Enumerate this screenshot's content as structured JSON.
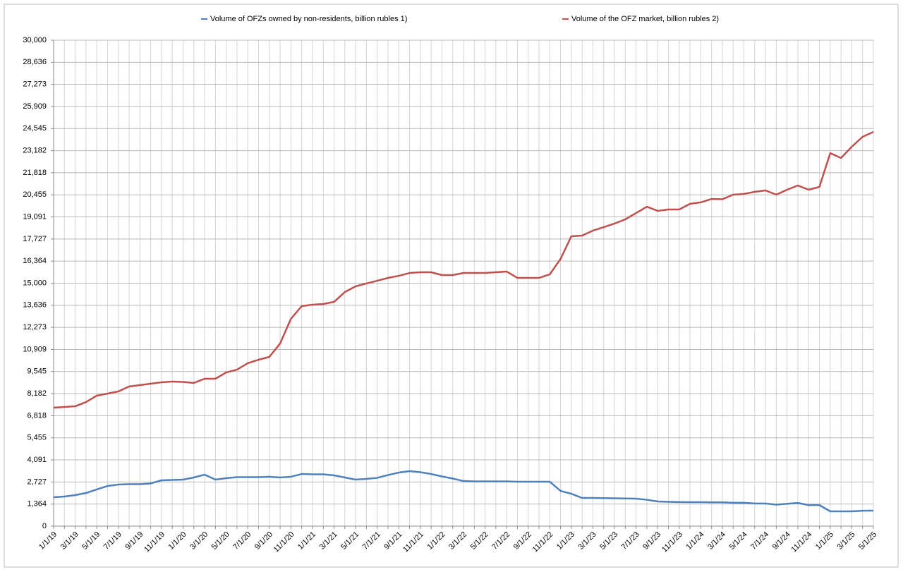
{
  "chart_data": {
    "type": "line",
    "categories": [
      "1/1/19",
      null,
      "3/1/19",
      null,
      "5/1/19",
      null,
      "7/1/19",
      null,
      "9/1/19",
      null,
      "11/1/19",
      null,
      "1/1/20",
      null,
      "3/1/20",
      null,
      "5/1/20",
      null,
      "7/1/20",
      null,
      "9/1/20",
      null,
      "11/1/20",
      null,
      "1/1/21",
      null,
      "3/1/21",
      null,
      "5/1/21",
      null,
      "7/1/21",
      null,
      "9/1/21",
      null,
      "11/1/21",
      null,
      "1/1/22",
      null,
      "3/1/22",
      null,
      "5/1/22",
      null,
      "7/1/22",
      null,
      "9/1/22",
      null,
      "11/1/22",
      null,
      "1/1/23",
      null,
      "3/1/23",
      null,
      "5/1/23",
      null,
      "7/1/23",
      null,
      "9/1/23",
      null,
      "11/1/23",
      null,
      "1/1/24",
      null,
      "3/1/24",
      null,
      "5/1/24",
      null,
      "7/1/24",
      null,
      "9/1/24",
      null,
      "11/1/24",
      null,
      "1/1/25",
      null,
      "3/1/25",
      null,
      "5/1/25"
    ],
    "series": [
      {
        "name": "Volume of OFZs owned by non-residents, billion rubles 1)",
        "color": "#4f81bd",
        "values": [
          1785,
          1830,
          1915,
          2045,
          2265,
          2480,
          2570,
          2590,
          2590,
          2635,
          2830,
          2850,
          2875,
          3005,
          3180,
          2875,
          2960,
          3025,
          3025,
          3025,
          3050,
          3005,
          3050,
          3220,
          3200,
          3200,
          3135,
          3005,
          2875,
          2915,
          2980,
          3155,
          3310,
          3395,
          3330,
          3220,
          3070,
          2940,
          2785,
          2765,
          2765,
          2765,
          2765,
          2745,
          2745,
          2745,
          2745,
          2175,
          2000,
          1740,
          1740,
          1730,
          1720,
          1710,
          1700,
          1630,
          1525,
          1500,
          1485,
          1480,
          1480,
          1470,
          1470,
          1445,
          1445,
          1400,
          1400,
          1330,
          1380,
          1430,
          1300,
          1300,
          915,
          915,
          915,
          955,
          960
        ]
      },
      {
        "name": "Volume of the OFZ market, billion rubles 2)",
        "color": "#c0504d",
        "values": [
          7315,
          7360,
          7400,
          7660,
          8055,
          8185,
          8315,
          8620,
          8710,
          8795,
          8880,
          8925,
          8905,
          8840,
          9100,
          9100,
          9490,
          9665,
          10060,
          10275,
          10450,
          11275,
          12800,
          13585,
          13670,
          13715,
          13845,
          14455,
          14805,
          14980,
          15150,
          15325,
          15455,
          15630,
          15675,
          15675,
          15500,
          15500,
          15630,
          15630,
          15630,
          15675,
          15720,
          15325,
          15325,
          15325,
          15545,
          16500,
          17895,
          17940,
          18245,
          18460,
          18680,
          18940,
          19330,
          19720,
          19465,
          19550,
          19550,
          19900,
          19990,
          20200,
          20180,
          20465,
          20510,
          20640,
          20725,
          20465,
          20770,
          21030,
          20770,
          20945,
          23030,
          22730,
          23425,
          24035,
          24340
        ]
      }
    ],
    "ylim": [
      0,
      30000
    ],
    "yticks": [
      0,
      {
        "value": 1364,
        "label": "1,364"
      },
      {
        "value": 2727,
        "label": "2,727"
      },
      {
        "value": 4091,
        "label": "4,091"
      },
      {
        "value": 5455,
        "label": "5,455"
      },
      {
        "value": 6818,
        "label": "6,818"
      },
      {
        "value": 8182,
        "label": "8,182"
      },
      {
        "value": 9545,
        "label": "9,545"
      },
      {
        "value": 10909,
        "label": "10,909"
      },
      {
        "value": 12273,
        "label": "12,273"
      },
      {
        "value": 13636,
        "label": "13,636"
      },
      {
        "value": 15000,
        "label": "15,000"
      },
      {
        "value": 16364,
        "label": "16,364"
      },
      {
        "value": 17727,
        "label": "17,727"
      },
      {
        "value": 19091,
        "label": "19,091"
      },
      {
        "value": 20455,
        "label": "20,455"
      },
      {
        "value": 21818,
        "label": "21,818"
      },
      {
        "value": 23182,
        "label": "23,182"
      },
      {
        "value": 24545,
        "label": "24,545"
      },
      {
        "value": 25909,
        "label": "25,909"
      },
      {
        "value": 27273,
        "label": "27,273"
      },
      {
        "value": 28636,
        "label": "28,636"
      },
      {
        "value": 30000,
        "label": "30,000"
      }
    ],
    "grid": true,
    "legend": "top"
  }
}
